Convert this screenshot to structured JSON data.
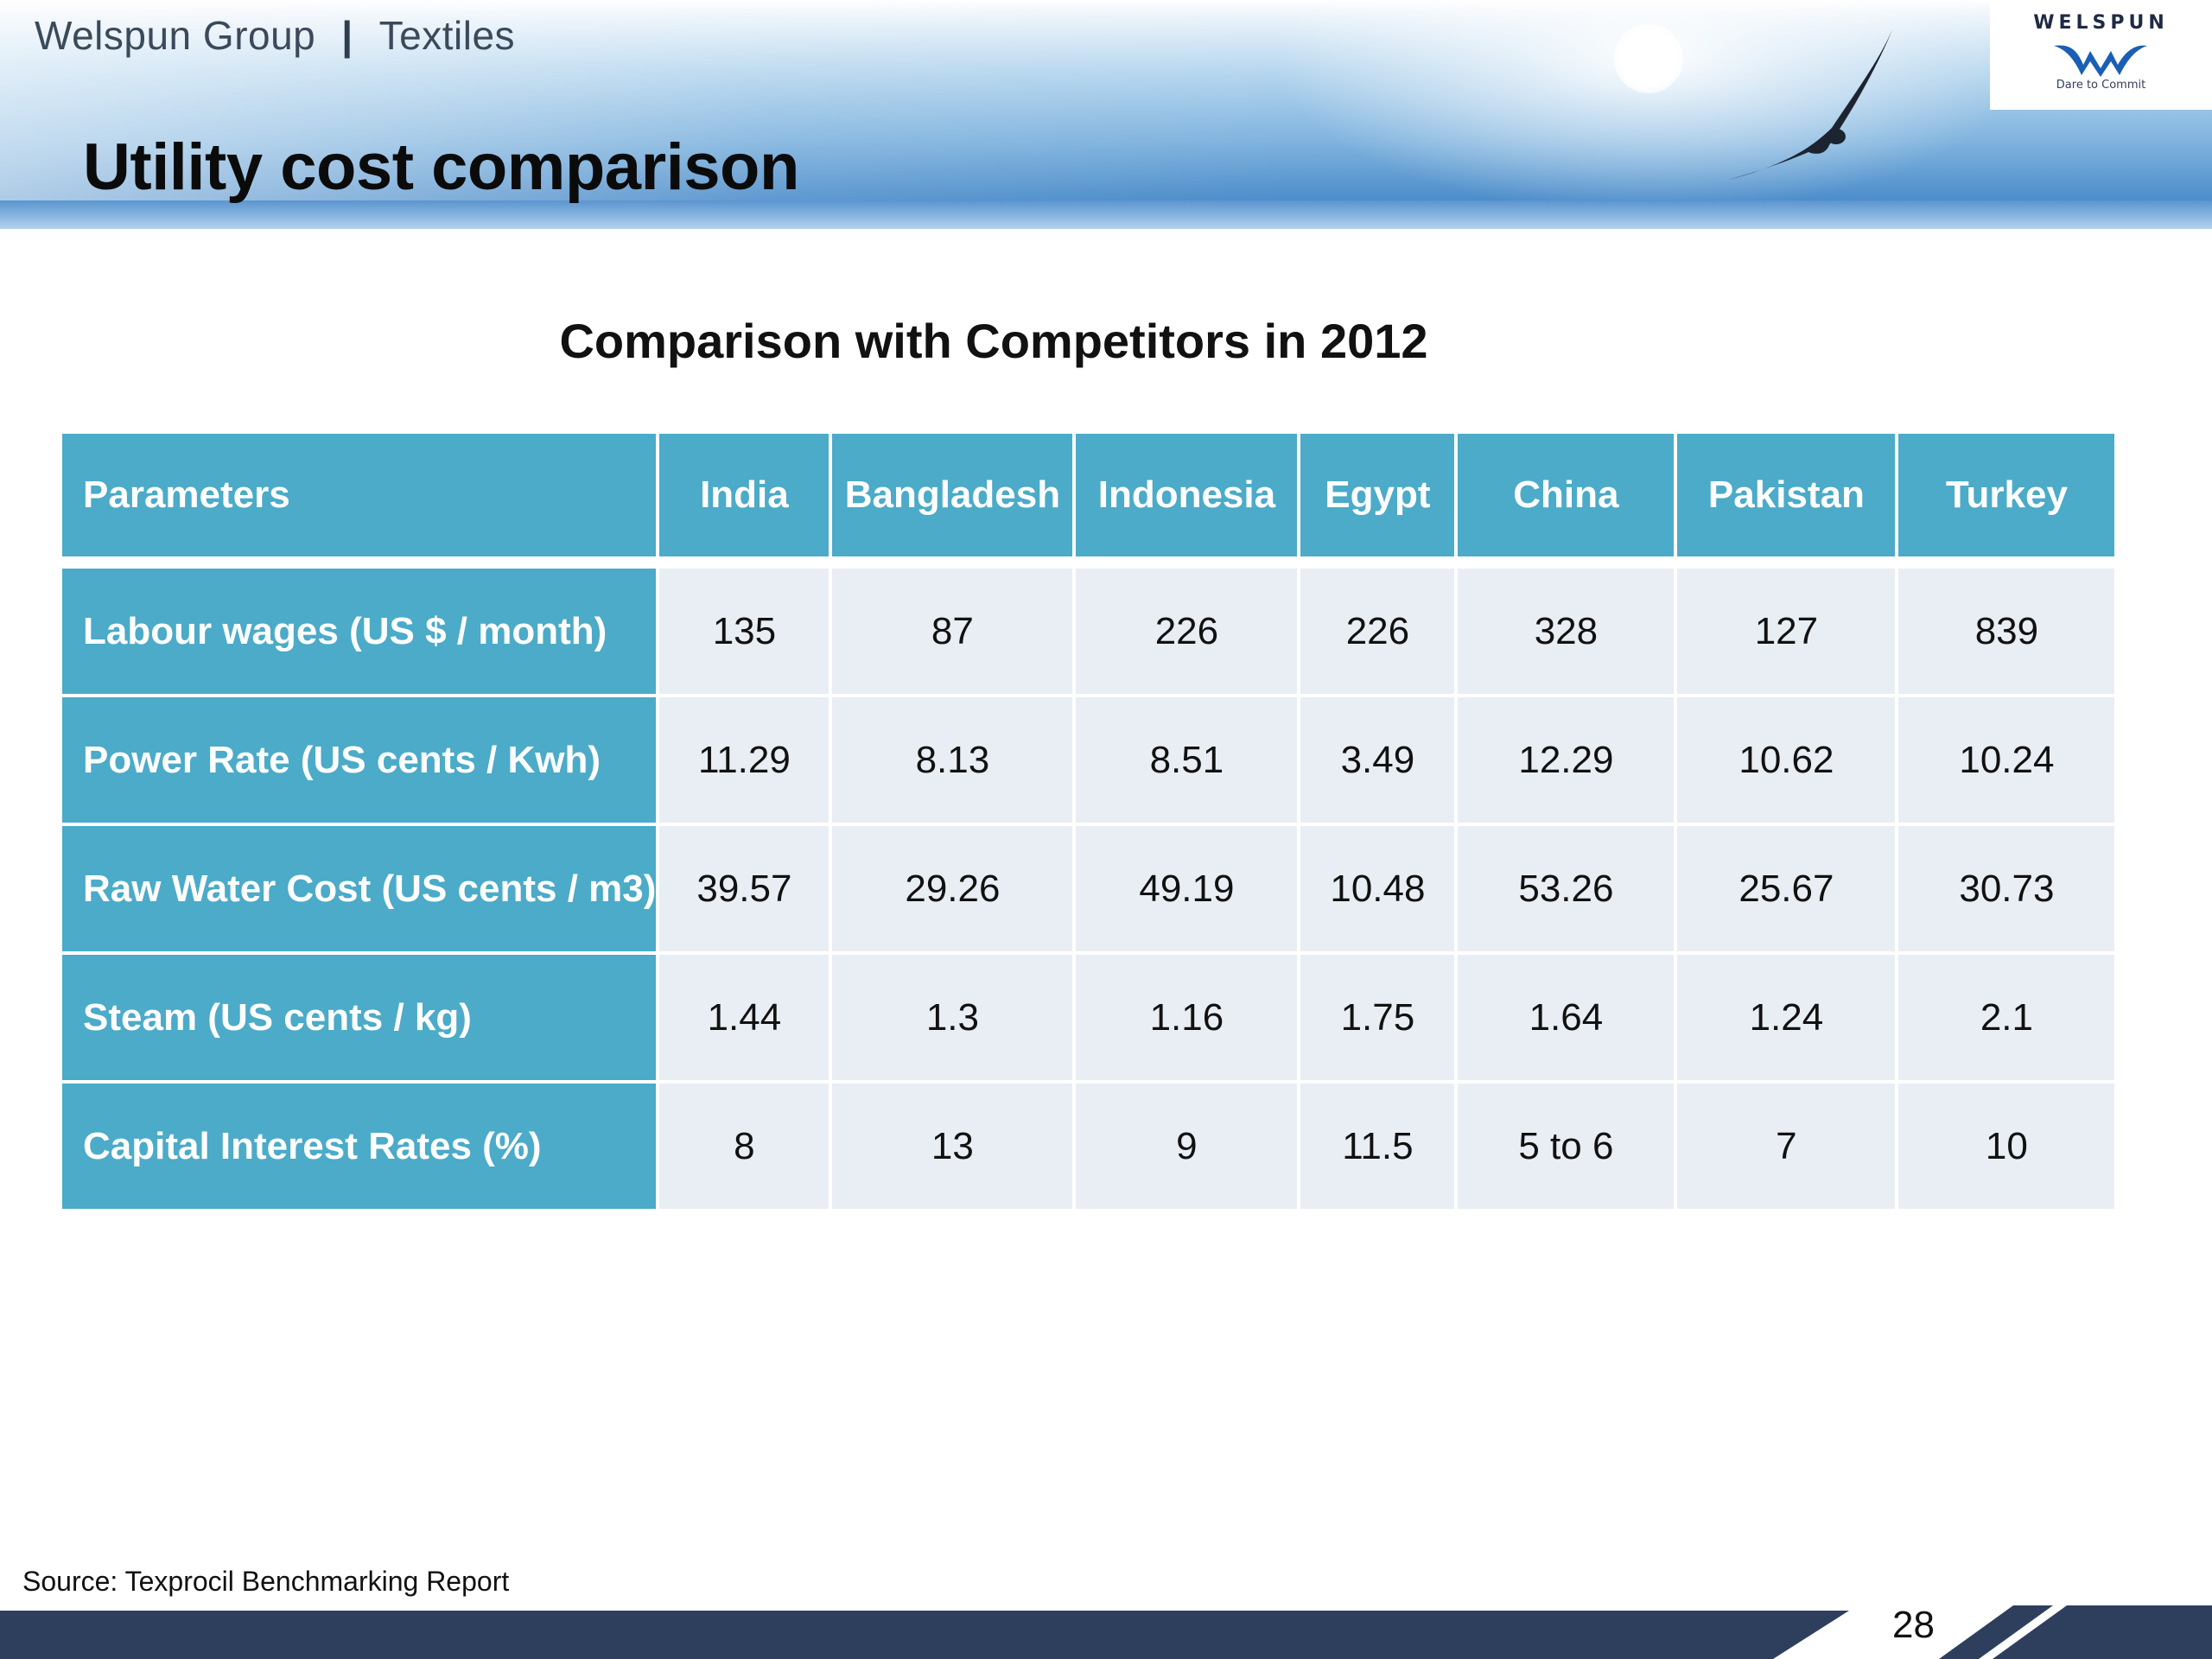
{
  "header": {
    "company": "Welspun Group",
    "separator": "|",
    "division": "Textiles",
    "title": "Utility cost comparison"
  },
  "logo": {
    "wordmark": "WELSPUN",
    "tagline": "Dare to Commit",
    "brand_color": "#1a5fb4"
  },
  "subtitle": "Comparison with Competitors in 2012",
  "table": {
    "header": [
      "Parameters",
      "India",
      "Bangladesh",
      "Indonesia",
      "Egypt",
      "China",
      "Pakistan",
      "Turkey"
    ],
    "rows": [
      {
        "label": "Labour wages (US $ / month)",
        "values": [
          "135",
          "87",
          "226",
          "226",
          "328",
          "127",
          "839"
        ]
      },
      {
        "label": "Power Rate (US cents / Kwh)",
        "values": [
          "11.29",
          "8.13",
          "8.51",
          "3.49",
          "12.29",
          "10.62",
          "10.24"
        ]
      },
      {
        "label": "Raw Water Cost (US cents / m3)",
        "values": [
          "39.57",
          "29.26",
          "49.19",
          "10.48",
          "53.26",
          "25.67",
          "30.73"
        ]
      },
      {
        "label": "Steam (US cents / kg)",
        "values": [
          "1.44",
          "1.3",
          "1.16",
          "1.75",
          "1.64",
          "1.24",
          "2.1"
        ]
      },
      {
        "label": "Capital Interest Rates (%)",
        "values": [
          "8",
          "13",
          "9",
          "11.5",
          "5 to 6",
          "7",
          "10"
        ]
      }
    ]
  },
  "footer": {
    "source": "Source: Texprocil Benchmarking Report",
    "page_number": "28"
  },
  "colors": {
    "header_cell": "#4babc8",
    "data_cell": "#e9eef4",
    "footer_bar": "#2e3f5e"
  }
}
